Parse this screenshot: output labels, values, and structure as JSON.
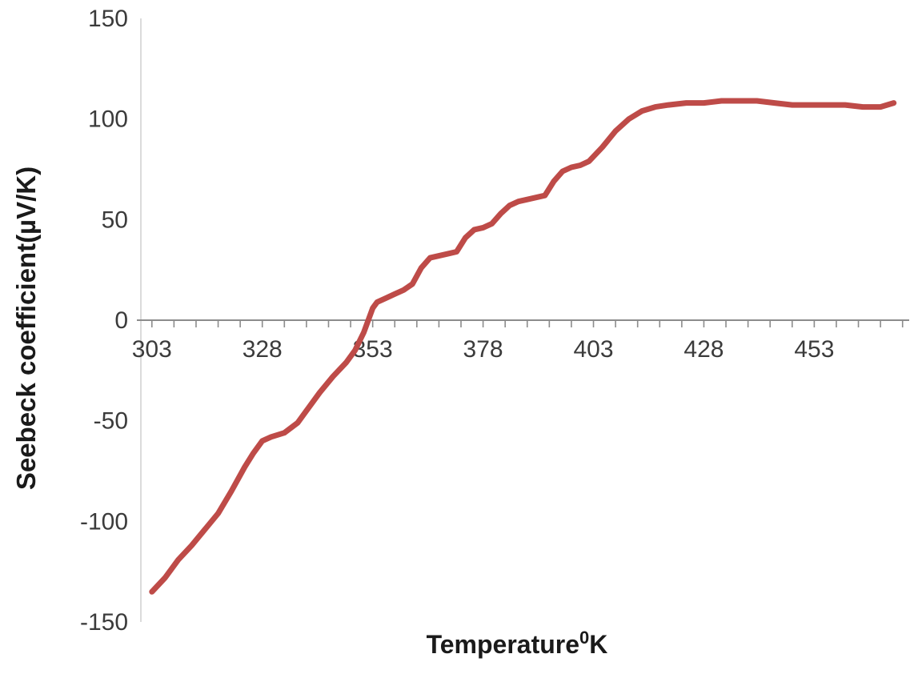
{
  "chart_data": {
    "type": "line",
    "title": "",
    "xlabel": "Temperature",
    "xlabel_superscript": "0",
    "xlabel_suffix": "K",
    "ylabel": "Seebeck coefficient(µV/K)",
    "x_ticks": [
      303,
      328,
      353,
      378,
      403,
      428,
      453
    ],
    "y_ticks": [
      -150,
      -100,
      -50,
      0,
      50,
      100,
      150
    ],
    "x_minor_tick_step": 5,
    "x_minor_tick_start": 303,
    "x_minor_tick_end": 473,
    "xlim": [
      300.5,
      474.5
    ],
    "ylim": [
      -150,
      150
    ],
    "grid": false,
    "legend": null,
    "axis_color": "#8c8c8c",
    "tick_label_color": "#3b3b3b",
    "title_color": "#1a1a1a",
    "series": [
      {
        "name": "Seebeck coefficient",
        "color": "#BE4B48",
        "line_width": 7,
        "points": [
          [
            303,
            -135
          ],
          [
            306,
            -128
          ],
          [
            309,
            -119
          ],
          [
            312,
            -112
          ],
          [
            315,
            -104
          ],
          [
            318,
            -96
          ],
          [
            321,
            -85
          ],
          [
            324,
            -73
          ],
          [
            326,
            -66
          ],
          [
            328,
            -60
          ],
          [
            330,
            -58
          ],
          [
            333,
            -56
          ],
          [
            336,
            -51
          ],
          [
            338,
            -45
          ],
          [
            341,
            -36
          ],
          [
            344,
            -28
          ],
          [
            347,
            -21
          ],
          [
            349,
            -15
          ],
          [
            351,
            -6
          ],
          [
            353,
            6
          ],
          [
            354,
            9
          ],
          [
            356,
            11
          ],
          [
            358,
            13
          ],
          [
            360,
            15
          ],
          [
            362,
            18
          ],
          [
            364,
            26
          ],
          [
            366,
            31
          ],
          [
            368,
            32
          ],
          [
            370,
            33
          ],
          [
            372,
            34
          ],
          [
            374,
            41
          ],
          [
            376,
            45
          ],
          [
            378,
            46
          ],
          [
            380,
            48
          ],
          [
            382,
            53
          ],
          [
            384,
            57
          ],
          [
            386,
            59
          ],
          [
            388,
            60
          ],
          [
            390,
            61
          ],
          [
            392,
            62
          ],
          [
            394,
            69
          ],
          [
            396,
            74
          ],
          [
            398,
            76
          ],
          [
            400,
            77
          ],
          [
            402,
            79
          ],
          [
            405,
            86
          ],
          [
            408,
            94
          ],
          [
            411,
            100
          ],
          [
            414,
            104
          ],
          [
            417,
            106
          ],
          [
            420,
            107
          ],
          [
            424,
            108
          ],
          [
            428,
            108
          ],
          [
            432,
            109
          ],
          [
            436,
            109
          ],
          [
            440,
            109
          ],
          [
            444,
            108
          ],
          [
            448,
            107
          ],
          [
            452,
            107
          ],
          [
            456,
            107
          ],
          [
            460,
            107
          ],
          [
            464,
            106
          ],
          [
            468,
            106
          ],
          [
            471,
            108
          ]
        ]
      }
    ]
  }
}
